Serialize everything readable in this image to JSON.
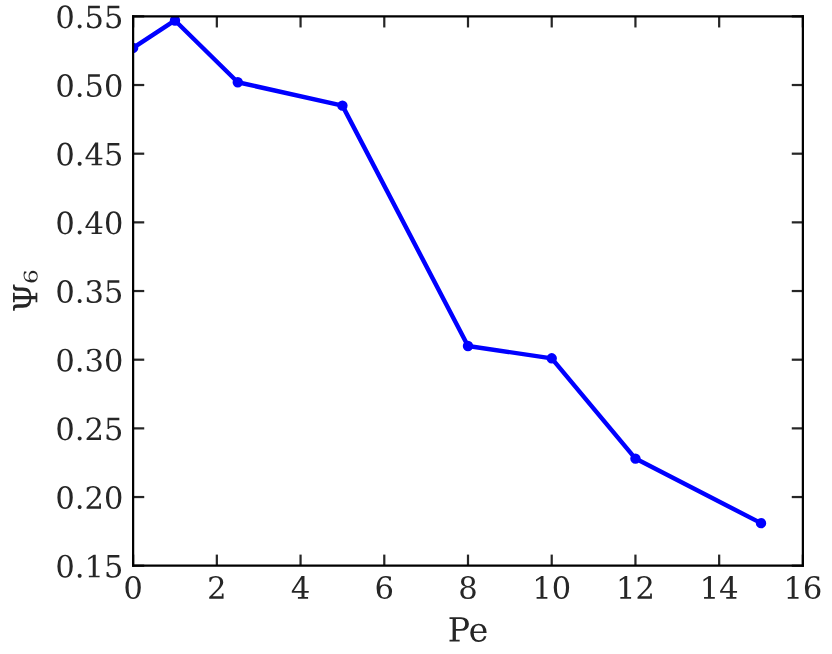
{
  "chart_data": {
    "type": "line",
    "xlabel": "Pe",
    "ylabel": "Ψ₆",
    "x": [
      0,
      1,
      2.5,
      5,
      8,
      10,
      12,
      15
    ],
    "series": [
      {
        "color": "#0000ff",
        "values": [
          0.527,
          0.547,
          0.502,
          0.485,
          0.31,
          0.301,
          0.228,
          0.181
        ]
      }
    ],
    "xlim": [
      0,
      16
    ],
    "xticks": [
      0,
      2,
      4,
      6,
      8,
      10,
      12,
      14,
      16
    ],
    "ylim": [
      0.15,
      0.55
    ],
    "yticks": [
      {
        "value": 0.15,
        "label": "0.15"
      },
      {
        "value": 0.2,
        "label": "0.20"
      },
      {
        "value": 0.25,
        "label": "0.25"
      },
      {
        "value": 0.3,
        "label": "0.30"
      },
      {
        "value": 0.35,
        "label": "0.35"
      },
      {
        "value": 0.4,
        "label": "0.40"
      },
      {
        "value": 0.45,
        "label": "0.45"
      },
      {
        "value": 0.5,
        "label": "0.50"
      },
      {
        "value": 0.55,
        "label": "0.55"
      }
    ],
    "grid": false,
    "marker": "circle",
    "line_style": "solid"
  }
}
